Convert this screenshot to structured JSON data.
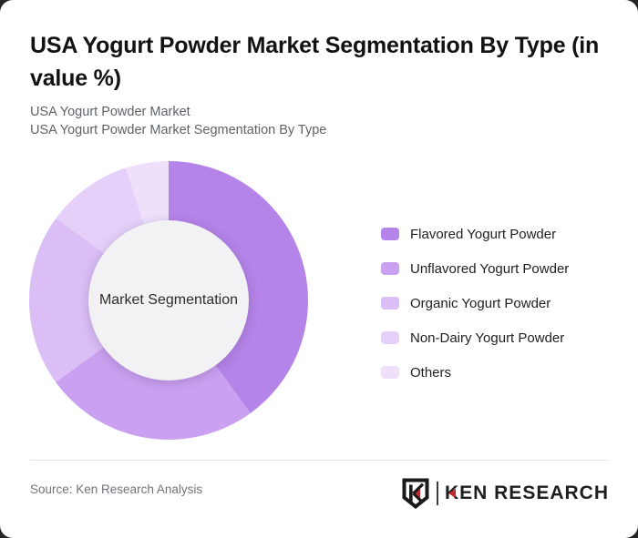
{
  "header": {
    "title": "USA Yogurt Powder Market Segmentation By Type (in value %)",
    "subtitle_line1": "USA Yogurt Powder Market",
    "subtitle_line2": "USA Yogurt Powder Market Segmentation By Type"
  },
  "chart_data": {
    "type": "pie",
    "variant": "donut",
    "title": "USA Yogurt Powder Market Segmentation By Type (in value %)",
    "unit": "value %",
    "center_label": "Market Segmentation",
    "categories": [
      "Flavored Yogurt Powder",
      "Unflavored Yogurt Powder",
      "Organic Yogurt Powder",
      "Non-Dairy Yogurt Powder",
      "Others"
    ],
    "values": [
      40,
      25,
      20,
      10,
      5
    ],
    "colors": [
      "#b584e8",
      "#c9a1f0",
      "#dabef5",
      "#e4d0f8",
      "#eee0fb"
    ],
    "hole_color": "#f2f1f3",
    "start_angle_deg": 0,
    "direction": "clockwise",
    "legend_position": "right"
  },
  "footer": {
    "source": "Source: Ken Research Analysis",
    "brand": "KEN RESEARCH"
  },
  "colors": {
    "accent_red": "#c4262e",
    "logo_dark": "#1e1e1e",
    "card_bg": "#ffffff",
    "backdrop": "#262626"
  }
}
